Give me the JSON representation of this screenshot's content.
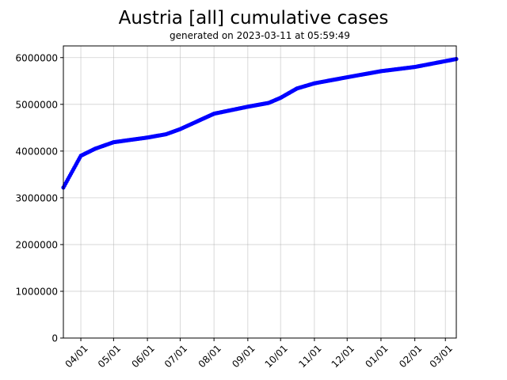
{
  "chart_data": {
    "type": "line",
    "title": "Austria [all] cumulative cases",
    "subtitle": "generated on 2023-03-11 at 05:59:49",
    "xlabel": "",
    "ylabel": "",
    "xlim": [
      "2022-03-16",
      "2023-03-11"
    ],
    "ylim": [
      0,
      6250000
    ],
    "grid": true,
    "color": "#0000ff",
    "x_ticks": [
      {
        "date": "2022-04-01",
        "label": "04/01"
      },
      {
        "date": "2022-05-01",
        "label": "05/01"
      },
      {
        "date": "2022-06-01",
        "label": "06/01"
      },
      {
        "date": "2022-07-01",
        "label": "07/01"
      },
      {
        "date": "2022-08-01",
        "label": "08/01"
      },
      {
        "date": "2022-09-01",
        "label": "09/01"
      },
      {
        "date": "2022-10-01",
        "label": "10/01"
      },
      {
        "date": "2022-11-01",
        "label": "11/01"
      },
      {
        "date": "2022-12-01",
        "label": "12/01"
      },
      {
        "date": "2023-01-01",
        "label": "01/01"
      },
      {
        "date": "2023-02-01",
        "label": "02/01"
      },
      {
        "date": "2023-03-01",
        "label": "03/01"
      }
    ],
    "y_ticks": [
      0,
      1000000,
      2000000,
      3000000,
      4000000,
      5000000,
      6000000
    ],
    "points": [
      [
        "2022-03-16",
        3220000
      ],
      [
        "2022-04-01",
        3900000
      ],
      [
        "2022-04-14",
        4050000
      ],
      [
        "2022-05-01",
        4190000
      ],
      [
        "2022-06-01",
        4290000
      ],
      [
        "2022-06-18",
        4360000
      ],
      [
        "2022-07-01",
        4470000
      ],
      [
        "2022-08-01",
        4800000
      ],
      [
        "2022-09-01",
        4950000
      ],
      [
        "2022-09-20",
        5030000
      ],
      [
        "2022-10-01",
        5140000
      ],
      [
        "2022-10-16",
        5340000
      ],
      [
        "2022-11-01",
        5450000
      ],
      [
        "2022-12-01",
        5580000
      ],
      [
        "2023-01-01",
        5710000
      ],
      [
        "2023-02-01",
        5800000
      ],
      [
        "2023-03-11",
        5970000
      ]
    ]
  }
}
